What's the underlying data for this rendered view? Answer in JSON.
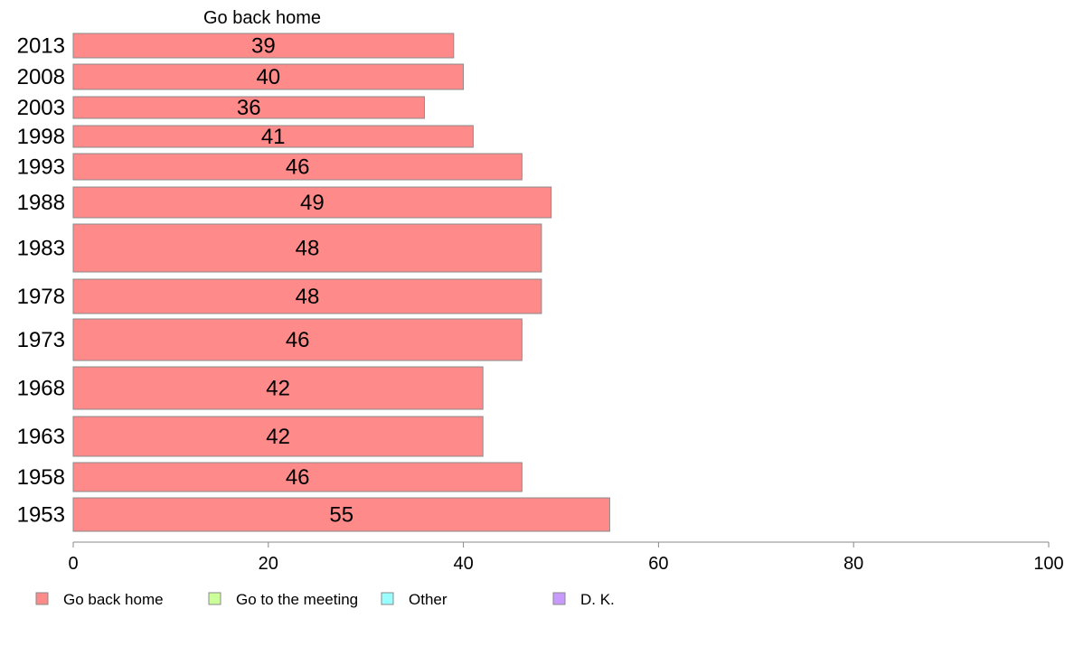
{
  "chart_data": {
    "type": "bar",
    "orientation": "horizontal",
    "stacked": true,
    "title": "Go back home",
    "categories": [
      "2013",
      "2008",
      "2003",
      "1998",
      "1993",
      "1988",
      "1983",
      "1978",
      "1973",
      "1968",
      "1963",
      "1958",
      "1953"
    ],
    "series": [
      {
        "name": "Go back home",
        "color": "#ff8a8a",
        "values": [
          39,
          40,
          36,
          41,
          46,
          49,
          48,
          48,
          46,
          42,
          42,
          46,
          55
        ],
        "labels": [
          "39",
          "40",
          "36",
          "41",
          "46",
          "49",
          "48",
          "48",
          "46",
          "42",
          "42",
          "46",
          "55"
        ]
      }
    ],
    "xlim": [
      0,
      100
    ],
    "xticks": [
      "0",
      "20",
      "40",
      "60",
      "80",
      "100"
    ],
    "grid": false,
    "legend": {
      "placement": "bottom-left",
      "entries": [
        {
          "name": "Go back home",
          "color": "#ff8a8a"
        },
        {
          "name": "Go to the meeting",
          "color": "#ccff99"
        },
        {
          "name": "Other",
          "color": "#99ffff"
        },
        {
          "name": "D. K.",
          "color": "#c899ff"
        }
      ]
    }
  }
}
